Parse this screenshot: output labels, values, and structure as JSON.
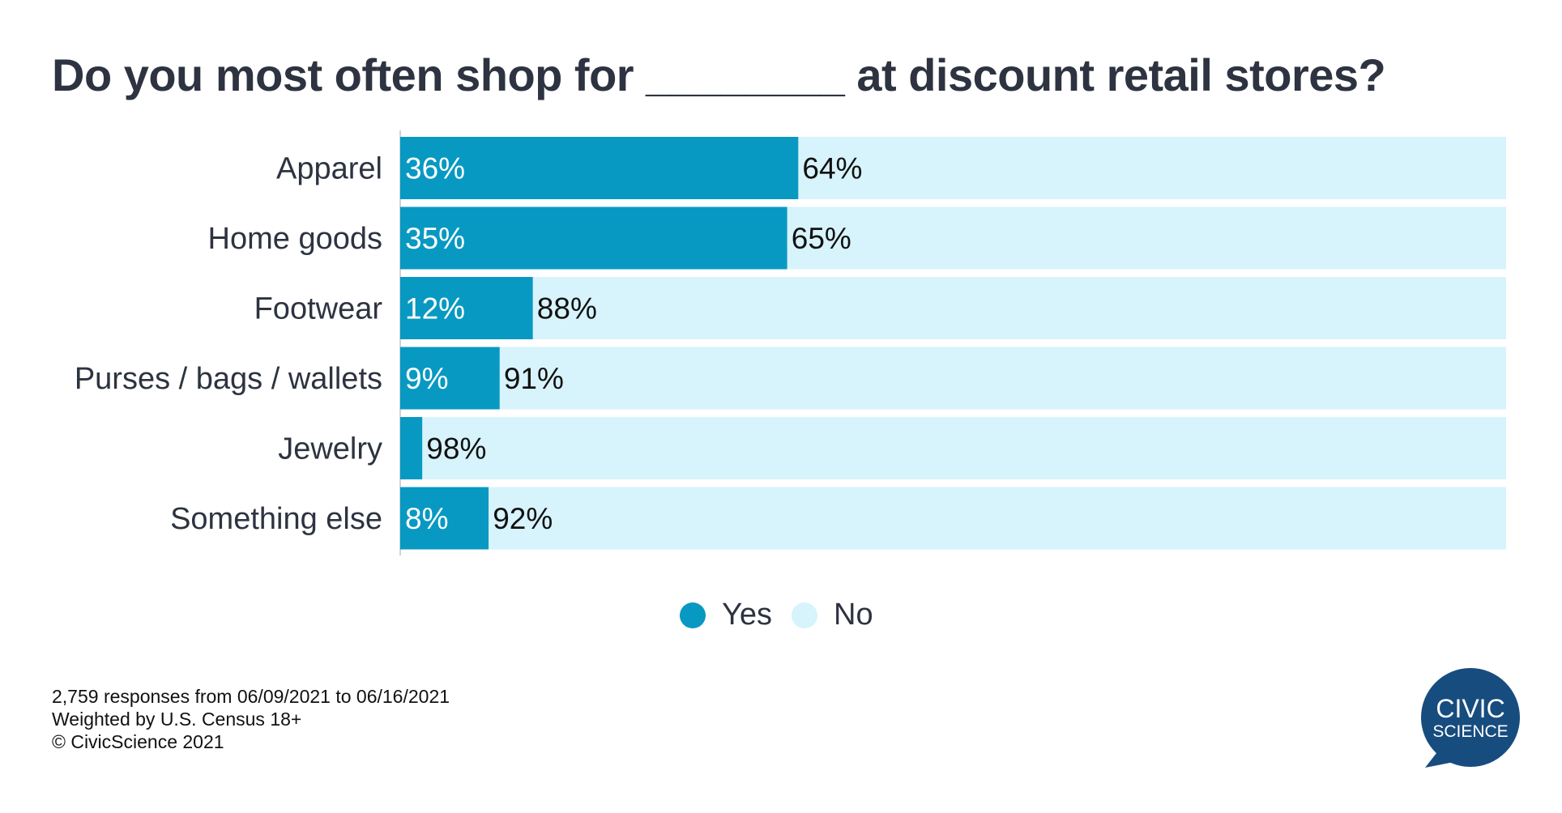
{
  "chart_data": {
    "type": "bar",
    "orientation": "horizontal",
    "stacked": true,
    "title": "Do you most often shop for ________ at discount retail stores?",
    "categories": [
      "Apparel",
      "Home goods",
      "Footwear",
      "Purses / bags / wallets",
      "Jewelry",
      "Something else"
    ],
    "series": [
      {
        "name": "Yes",
        "color": "#0899c2",
        "values": [
          36,
          35,
          12,
          9,
          2,
          8
        ],
        "labels": [
          "36%",
          "35%",
          "12%",
          "9%",
          "",
          "8%"
        ]
      },
      {
        "name": "No",
        "color": "#d7f3fb",
        "values": [
          64,
          65,
          88,
          91,
          98,
          92
        ],
        "labels": [
          "64%",
          "65%",
          "88%",
          "91%",
          "98%",
          "92%"
        ]
      }
    ],
    "xlim": [
      0,
      100
    ],
    "grid": false,
    "legend_position": "bottom"
  },
  "footer": {
    "line1": "2,759 responses from 06/09/2021 to 06/16/2021",
    "line2": "Weighted by U.S. Census 18+",
    "line3": "© CivicScience 2021"
  },
  "logo": {
    "line1": "CIVIC",
    "line2": "SCIENCE",
    "color": "#174c7f"
  }
}
